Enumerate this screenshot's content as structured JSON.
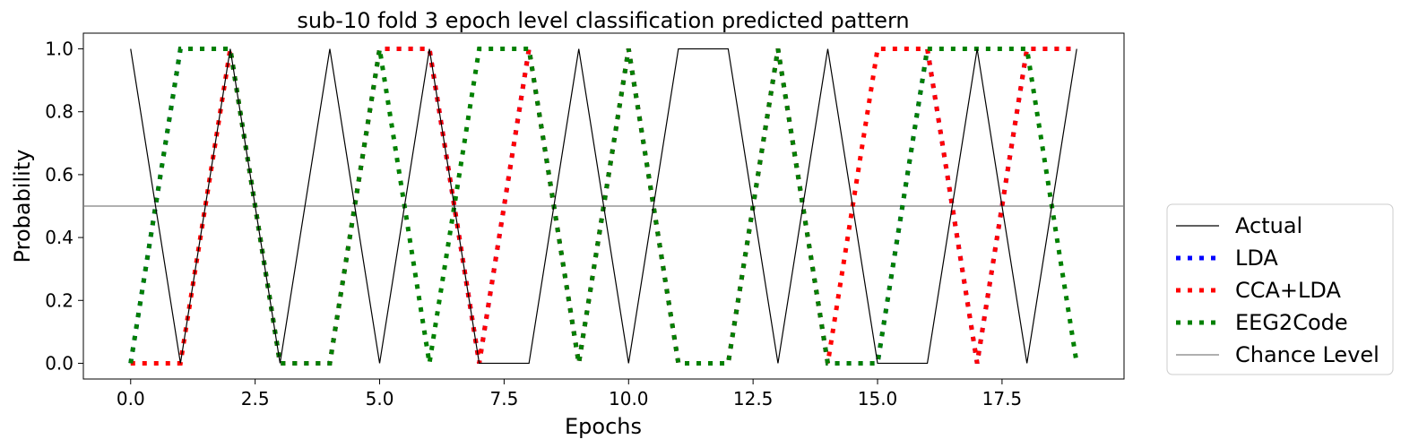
{
  "chart_data": {
    "type": "line",
    "title": "sub-10 fold 3 epoch level classification predicted pattern",
    "xlabel": "Epochs",
    "ylabel": "Probability",
    "xlim": [
      -0.95,
      19.95
    ],
    "ylim": [
      -0.05,
      1.05
    ],
    "xticks": [
      0.0,
      2.5,
      5.0,
      7.5,
      10.0,
      12.5,
      15.0,
      17.5
    ],
    "xtick_labels": [
      "0.0",
      "2.5",
      "5.0",
      "7.5",
      "10.0",
      "12.5",
      "15.0",
      "17.5"
    ],
    "yticks": [
      0.0,
      0.2,
      0.4,
      0.6,
      0.8,
      1.0
    ],
    "ytick_labels": [
      "0.0",
      "0.2",
      "0.4",
      "0.6",
      "0.8",
      "1.0"
    ],
    "grid": false,
    "legend_position": "outside-right-bottom",
    "chance_level": {
      "name": "Chance Level",
      "value": 0.5,
      "color": "#808080"
    },
    "x": [
      0,
      1,
      2,
      3,
      4,
      5,
      6,
      7,
      8,
      9,
      10,
      11,
      12,
      13,
      14,
      15,
      16,
      17,
      18,
      19
    ],
    "series": [
      {
        "name": "Actual",
        "color": "#000000",
        "style": "solid",
        "values": [
          1,
          0,
          1,
          0,
          1,
          0,
          1,
          0,
          0,
          1,
          0,
          1,
          1,
          0,
          1,
          0,
          0,
          1,
          0,
          1
        ]
      },
      {
        "name": "LDA",
        "color": "#0000ff",
        "style": "dotted",
        "values": [
          0,
          1,
          1,
          0,
          0,
          1,
          1,
          0,
          1,
          0,
          1,
          0,
          0,
          1,
          0,
          0,
          1,
          0,
          1,
          1
        ]
      },
      {
        "name": "CCA+LDA",
        "color": "#ff0000",
        "style": "dotted",
        "values": [
          0,
          0,
          1,
          0,
          0,
          1,
          1,
          0,
          1,
          0,
          1,
          0,
          0,
          1,
          0,
          1,
          1,
          0,
          1,
          1
        ]
      },
      {
        "name": "EEG2Code",
        "color": "#008000",
        "style": "dotted",
        "values": [
          0,
          1,
          1,
          0,
          0,
          1,
          0,
          1,
          1,
          0,
          1,
          0,
          0,
          1,
          0,
          0,
          1,
          1,
          1,
          0
        ]
      }
    ]
  }
}
